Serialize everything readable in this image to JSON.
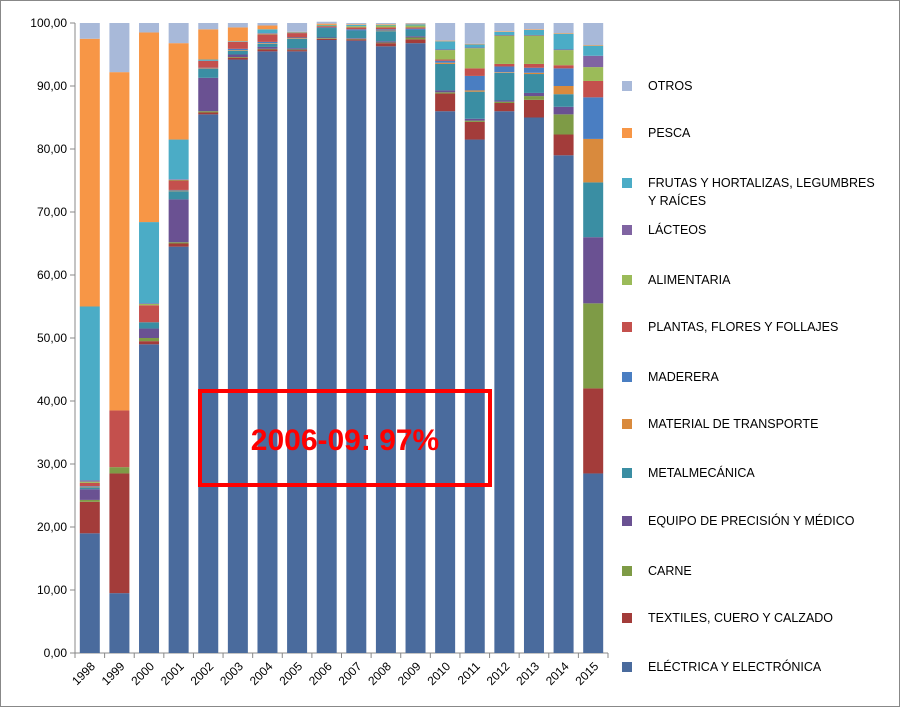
{
  "chart_data": {
    "type": "stacked_bar",
    "categories": [
      "1998",
      "1999",
      "2000",
      "2001",
      "2002",
      "2003",
      "2004",
      "2005",
      "2006",
      "2007",
      "2008",
      "2009",
      "2010",
      "2011",
      "2012",
      "2013",
      "2014",
      "2015"
    ],
    "ylim": [
      0,
      100
    ],
    "yticks": [
      {
        "value": 0,
        "label": "0,00"
      },
      {
        "value": 10,
        "label": "10,00"
      },
      {
        "value": 20,
        "label": "20,00"
      },
      {
        "value": 30,
        "label": "30,00"
      },
      {
        "value": 40,
        "label": "40,00"
      },
      {
        "value": 50,
        "label": "50,00"
      },
      {
        "value": 60,
        "label": "60,00"
      },
      {
        "value": 70,
        "label": "70,00"
      },
      {
        "value": 80,
        "label": "80,00"
      },
      {
        "value": 90,
        "label": "90,00"
      },
      {
        "value": 100,
        "label": "100,00"
      }
    ],
    "annotation": "2006-09: 97%",
    "series": [
      {
        "name": "ELÉCTRICA Y ELECTRÓNICA",
        "color": "#4a6b9d",
        "values": [
          19,
          9.5,
          49,
          64.5,
          85.5,
          94.2,
          95.5,
          95.5,
          97.3,
          97.2,
          96.3,
          96.8,
          86,
          81.5,
          86,
          85,
          79,
          28.5
        ]
      },
      {
        "name": "TEXTILES, CUERO Y CALZADO",
        "color": "#a33c3a",
        "values": [
          5,
          19,
          0.5,
          0.5,
          0.3,
          0.3,
          0.3,
          0.2,
          0.2,
          0.2,
          0.5,
          0.6,
          2.8,
          2.8,
          1.3,
          2.8,
          3.3,
          13.5
        ]
      },
      {
        "name": "CARNE",
        "color": "#7e9b46",
        "values": [
          0.3,
          1,
          0.5,
          0.2,
          0.2,
          0.1,
          0.1,
          0.1,
          0.1,
          0.1,
          0.1,
          0.3,
          0.2,
          0.2,
          0.2,
          0.6,
          3.2,
          13.5
        ]
      },
      {
        "name": "EQUIPO DE PRECISIÓN Y MÉDICO",
        "color": "#6a5192",
        "values": [
          1.7,
          0,
          1.5,
          6.8,
          5.3,
          0.4,
          0.3,
          0.2,
          0.1,
          0.1,
          0.2,
          0.2,
          0.3,
          0.3,
          0.2,
          0.5,
          1.2,
          10.5
        ]
      },
      {
        "name": "METALMECÁNICA",
        "color": "#3a8ea3",
        "values": [
          0.3,
          0,
          1,
          1.3,
          1.4,
          0.6,
          0.5,
          1.5,
          1.5,
          1.2,
          1.6,
          1,
          4.2,
          4.3,
          4.4,
          3,
          2,
          8.7
        ]
      },
      {
        "name": "MATERIAL DE TRANSPORTE",
        "color": "#d98a3d",
        "values": [
          0.1,
          0,
          0,
          0.1,
          0.1,
          0.1,
          0.1,
          0.1,
          0,
          0,
          0.1,
          0,
          0.2,
          0.2,
          0.1,
          0.2,
          1.3,
          6.9
        ]
      },
      {
        "name": "MADERERA",
        "color": "#4a7ec2",
        "values": [
          0.1,
          0,
          0,
          0.1,
          0.1,
          0.2,
          0.2,
          0.1,
          0.1,
          0.2,
          0.2,
          0.2,
          0.3,
          2.3,
          0.9,
          0.8,
          2.8,
          6.6
        ]
      },
      {
        "name": "PLANTAS, FLORES Y FOLLAJES",
        "color": "#c4504d",
        "values": [
          0.5,
          9,
          2.7,
          1.5,
          1.1,
          1.1,
          1.2,
          0.7,
          0.2,
          0.3,
          0.3,
          0.2,
          0.2,
          1.2,
          0.4,
          0.6,
          0.5,
          2.6
        ]
      },
      {
        "name": "ALIMENTARIA",
        "color": "#9bbb59",
        "values": [
          0.2,
          0,
          0.2,
          0.1,
          0,
          0,
          0.1,
          0,
          0.1,
          0.2,
          0.3,
          0.3,
          1.5,
          3.2,
          4.5,
          4.5,
          2.4,
          2.2
        ]
      },
      {
        "name": "LÁCTEOS",
        "color": "#8064a2",
        "values": [
          0.2,
          0,
          0.1,
          0.1,
          0,
          0,
          0.1,
          0,
          0,
          0,
          0,
          0,
          0.1,
          0.1,
          0.1,
          0.1,
          0.1,
          1.8
        ]
      },
      {
        "name": "FRUTAS Y HORTALIZAS, LEGUMBRES Y RAÍCES",
        "color": "#4bacc6",
        "values": [
          27.6,
          0,
          12.9,
          6.3,
          0.2,
          0.1,
          0.6,
          0.1,
          0.1,
          0.2,
          0.1,
          0.2,
          1.3,
          0.5,
          0.5,
          0.8,
          2.5,
          1.6
        ]
      },
      {
        "name": "PESCA",
        "color": "#f79646",
        "values": [
          42.5,
          53.7,
          30.1,
          15.3,
          4.8,
          2.2,
          0.6,
          0.1,
          0.2,
          0.1,
          0.1,
          0.1,
          0.1,
          0.1,
          0.1,
          0.1,
          0.1,
          0.1
        ]
      },
      {
        "name": "OTROS",
        "color": "#a8b9d9",
        "values": [
          2.5,
          7.8,
          1.5,
          3.2,
          1,
          0.7,
          0.4,
          1.4,
          0.3,
          0.2,
          0.2,
          0.1,
          2.8,
          3.3,
          1.3,
          1,
          1.6,
          3.5
        ]
      }
    ]
  }
}
